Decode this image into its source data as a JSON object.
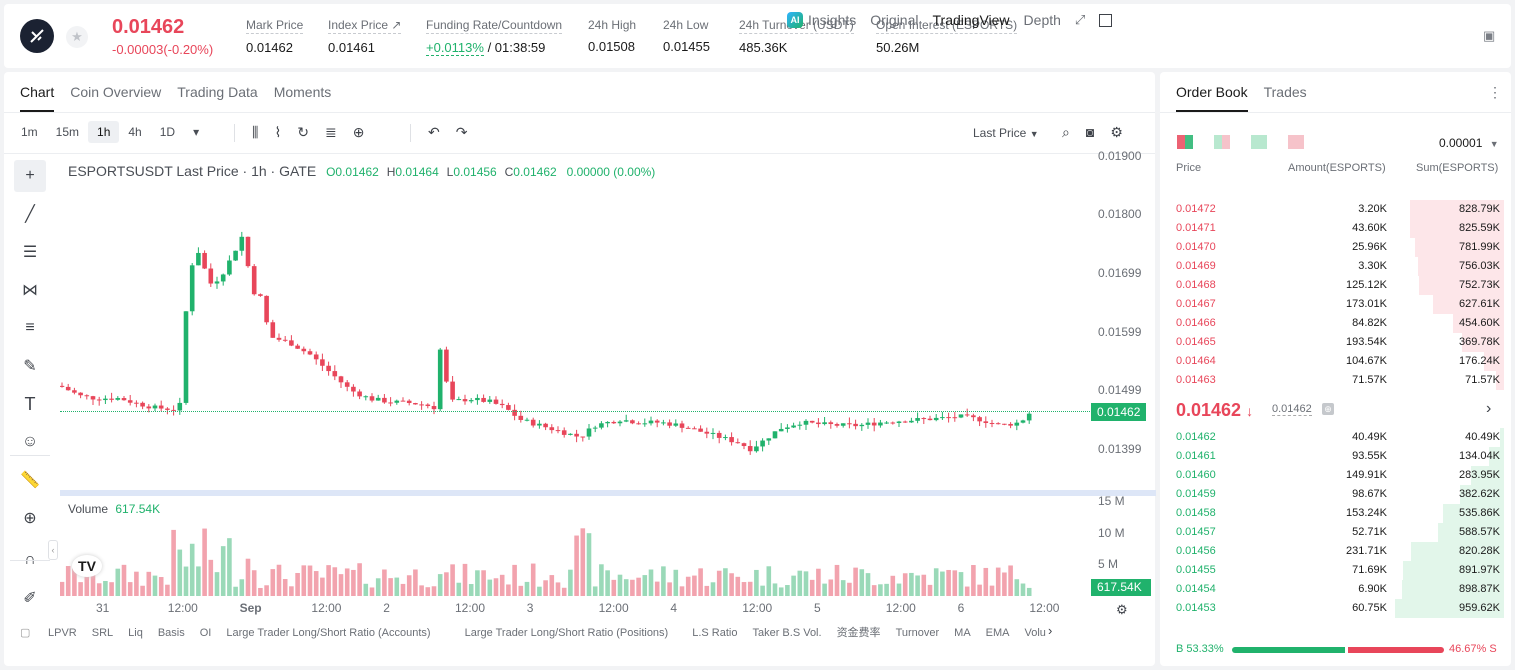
{
  "header": {
    "last_price": "0.01462",
    "change": "-0.00003(-0.20%)",
    "stats": [
      {
        "label": "Mark Price",
        "value": "0.01462"
      },
      {
        "label": "Index Price ↗",
        "value": "0.01461"
      },
      {
        "label": "Funding Rate/Countdown",
        "value_green": "+0.0113%",
        "value": " / 01:38:59"
      },
      {
        "label": "24h High",
        "value": "0.01508"
      },
      {
        "label": "24h Low",
        "value": "0.01455"
      },
      {
        "label": "24h Turnover (USDT)",
        "value": "485.36K"
      },
      {
        "label": "Open Interest (ESPORTS)",
        "value": "50.26M"
      }
    ]
  },
  "chart_tabs": [
    "Chart",
    "Coin Overview",
    "Trading Data",
    "Moments"
  ],
  "chart_right": {
    "insights": "Insights",
    "original": "Original",
    "tradingview": "TradingView",
    "depth": "Depth"
  },
  "timeframes": [
    "1m",
    "15m",
    "1h",
    "4h",
    "1D"
  ],
  "price_type": "Last Price",
  "ohlc": {
    "title": "ESPORTSUSDT Last Price · 1h · GATE",
    "o": "0.01462",
    "h": "0.01464",
    "l": "0.01456",
    "c": "0.01462",
    "chg": "0.00000 (0.00%)"
  },
  "volume_label": "Volume",
  "volume_value": "617.54K",
  "price_axis": [
    "0.01900",
    "0.01800",
    "0.01699",
    "0.01599",
    "0.01499",
    "0.01399"
  ],
  "current_price_tag": "0.01462",
  "vol_axis": [
    "15 M",
    "10 M",
    "5 M"
  ],
  "vol_tag": "617.54K",
  "time_axis": [
    "31",
    "12:00",
    "Sep",
    "12:00",
    "2",
    "12:00",
    "3",
    "12:00",
    "4",
    "12:00",
    "5",
    "12:00",
    "6",
    "12:00"
  ],
  "bottom_tabs": [
    "LPVR",
    "SRL",
    "Liq",
    "Basis",
    "OI",
    "Large Trader Long/Short Ratio (Accounts)",
    "Large Trader Long/Short Ratio (Positions)",
    "L.S Ratio",
    "Taker B.S Vol.",
    "资金费率",
    "Turnover",
    "MA",
    "EMA",
    "Volu"
  ],
  "orderbook": {
    "tabs": [
      "Order Book",
      "Trades"
    ],
    "precision": "0.00001",
    "headers": [
      "Price",
      "Amount(ESPORTS)",
      "Sum(ESPORTS)"
    ],
    "asks": [
      [
        "0.01472",
        "3.20K",
        "828.79K",
        0.86
      ],
      [
        "0.01471",
        "43.60K",
        "825.59K",
        0.86
      ],
      [
        "0.01470",
        "25.96K",
        "781.99K",
        0.82
      ],
      [
        "0.01469",
        "3.30K",
        "756.03K",
        0.79
      ],
      [
        "0.01468",
        "125.12K",
        "752.73K",
        0.78
      ],
      [
        "0.01467",
        "173.01K",
        "627.61K",
        0.65
      ],
      [
        "0.01466",
        "84.82K",
        "454.60K",
        0.47
      ],
      [
        "0.01465",
        "193.54K",
        "369.78K",
        0.39
      ],
      [
        "0.01464",
        "104.67K",
        "176.24K",
        0.18
      ],
      [
        "0.01463",
        "71.57K",
        "71.57K",
        0.07
      ]
    ],
    "mid_price": "0.01462",
    "mid_mark": "0.01462",
    "bids": [
      [
        "0.01462",
        "40.49K",
        "40.49K",
        0.04
      ],
      [
        "0.01461",
        "93.55K",
        "134.04K",
        0.14
      ],
      [
        "0.01460",
        "149.91K",
        "283.95K",
        0.3
      ],
      [
        "0.01459",
        "98.67K",
        "382.62K",
        0.4
      ],
      [
        "0.01458",
        "153.24K",
        "535.86K",
        0.56
      ],
      [
        "0.01457",
        "52.71K",
        "588.57K",
        0.61
      ],
      [
        "0.01456",
        "231.71K",
        "820.28K",
        0.85
      ],
      [
        "0.01455",
        "71.69K",
        "891.97K",
        0.93
      ],
      [
        "0.01454",
        "6.90K",
        "898.87K",
        0.94
      ],
      [
        "0.01453",
        "60.75K",
        "959.62K",
        1.0
      ]
    ],
    "buy_pct": "B 53.33%",
    "sell_pct": "46.67% S",
    "buy_ratio": 0.5333
  },
  "colors": {
    "up": "#20b26c",
    "down": "#e8465a"
  }
}
